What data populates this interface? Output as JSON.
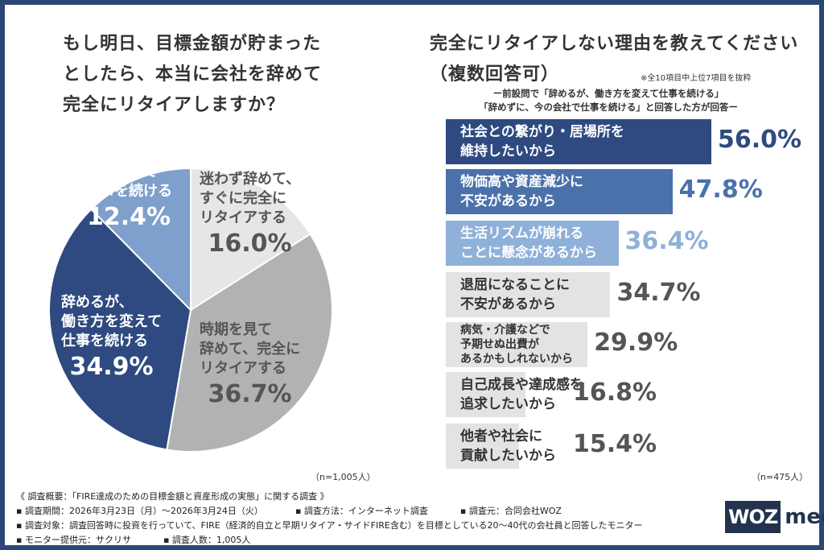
{
  "left": {
    "question": [
      "もし明日、目標金額が貯まった",
      "としたら、本当に会社を辞めて",
      "完全にリタイアしますか？"
    ],
    "n": "（n=1,005人）"
  },
  "right": {
    "question": [
      "完全にリタイアしない理由を教えてください",
      "（複数回答可）"
    ],
    "note": "※全10項目中上位7項目を抜粋",
    "sub": [
      "ー前設問で「辞めるが、働き方を変えて仕事を続ける」",
      "「辞めずに、今の会社で仕事を続ける」と回答した方が回答ー"
    ],
    "n": "（n=475人）"
  },
  "chart_data": [
    {
      "type": "pie",
      "slices": [
        {
          "label": "迷わず辞めて、すぐに完全にリタイアする",
          "value": 16.0,
          "display": "16.0%",
          "color": "#e6e6e6"
        },
        {
          "label": "時期を見て辞めて、完全にリタイアする",
          "value": 36.7,
          "display": "36.7%",
          "color": "#b2b2b2"
        },
        {
          "label": "辞めるが、働き方を変えて仕事を続ける",
          "value": 34.9,
          "display": "34.9%",
          "color": "#2e4a80"
        },
        {
          "label": "辞めずに、今の会社で仕事を続ける",
          "value": 12.4,
          "display": "12.4%",
          "color": "#7f9fcc"
        }
      ]
    },
    {
      "type": "bar",
      "orientation": "horizontal",
      "categories": [
        "社会との繋がり・居場所を維持したいから",
        "物価高や資産減少に不安があるから",
        "生活リズムが崩れることに懸念があるから",
        "退屈になることに不安があるから",
        "病気・介護などで予期せぬ出費があるかもしれないから",
        "自己成長や達成感を追求したいから",
        "他者や社会に貢献したいから"
      ],
      "values": [
        56.0,
        47.8,
        36.4,
        34.7,
        29.9,
        16.8,
        15.4
      ],
      "display": [
        "56.0%",
        "47.8%",
        "36.4%",
        "34.7%",
        "29.9%",
        "16.8%",
        "15.4%"
      ],
      "colors": [
        "#2e4a80",
        "#4a71aa",
        "#8fb0d8",
        "#e3e3e3",
        "#e3e3e3",
        "#e3e3e3",
        "#e3e3e3"
      ]
    }
  ],
  "labels": {
    "pie": [
      [
        "迷わず辞めて、",
        "すぐに完全に",
        "リタイアする"
      ],
      [
        "時期を見て",
        "辞めて、完全に",
        "リタイアする"
      ],
      [
        "辞めるが、",
        "働き方を変えて",
        "仕事を続ける"
      ],
      [
        "辞めずに、",
        "今の会社で",
        "仕事を続ける"
      ]
    ],
    "bars": [
      [
        "社会との繋がり・居場所を",
        "維持したいから"
      ],
      [
        "物価高や資産減少に",
        "不安があるから"
      ],
      [
        "生活リズムが崩れる",
        "ことに懸念があるから"
      ],
      [
        "退屈になることに",
        "不安があるから"
      ],
      [
        "病気・介護などで",
        "予期せぬ出費が",
        "あるかもしれないから"
      ],
      [
        "自己成長や達成感を",
        "追求したいから"
      ],
      [
        "他者や社会に",
        "貢献したいから"
      ]
    ]
  },
  "footer": {
    "title": "《 調査概要：「FIRE達成のための目標金額と資産形成の実態」に関する調査 》",
    "period": "▪ 調査期間：2026年3月23日（月）～2026年3月24日（火）",
    "method": "▪ 調査方法：インターネット調査",
    "source": "▪ 調査元：合同会社WOZ",
    "target": "▪ 調査対象：調査回答時に投資を行っていて、FIRE（経済的自立と早期リタイア・サイドFIRE含む）を目標としている20～40代の会社員と回答したモニター",
    "provider": "▪ モニター提供元：サクリサ",
    "count": "▪ 調査人数：1,005人"
  },
  "logo": {
    "woz": "WOZ",
    "media": "media"
  }
}
